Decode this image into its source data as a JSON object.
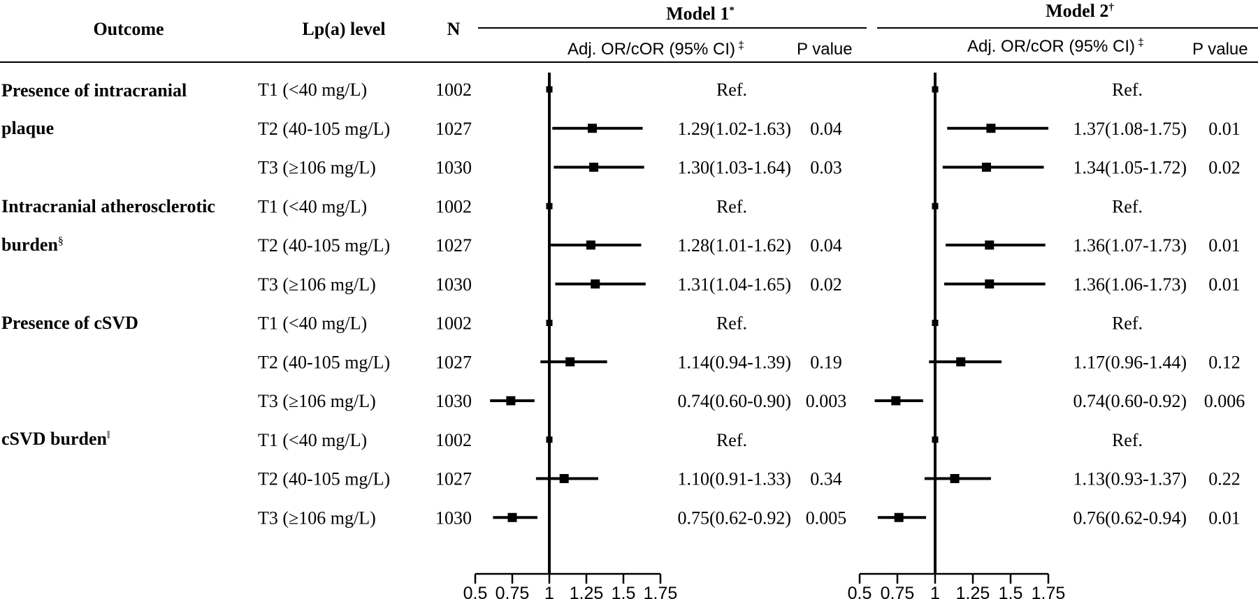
{
  "header": {
    "outcome": "Outcome",
    "level": "Lp(a) level",
    "n": "N",
    "models": [
      {
        "name": "Model 1",
        "mark": "*",
        "est_label": "Adj. OR/cOR (95% CI)",
        "est_mark": "‡",
        "p_label": "P value"
      },
      {
        "name": "Model 2",
        "mark": "†",
        "est_label": "Adj. OR/cOR (95% CI)",
        "est_mark": "‡",
        "p_label": "P value"
      }
    ]
  },
  "outcomes": [
    {
      "lines": [
        "Presence of intracranial",
        "plaque"
      ],
      "mark": ""
    },
    {
      "lines": [
        "Intracranial atherosclerotic",
        "burden"
      ],
      "mark": "§"
    },
    {
      "lines": [
        "Presence of cSVD"
      ],
      "mark": ""
    },
    {
      "lines": [
        "cSVD burden"
      ],
      "mark": "‖"
    }
  ],
  "chart_data": [
    {
      "type": "forest",
      "title": "Model 1",
      "xlim": [
        0.5,
        1.75
      ],
      "reference_line": 1,
      "x_ticks": [
        "0.5",
        "0.75",
        "1",
        "1.25",
        "1.5",
        "1.75"
      ],
      "rows": [
        {
          "level": "T1 (<40 mg/L)",
          "n": "1002",
          "est": 1.0,
          "lo": 1.0,
          "hi": 1.0,
          "text": "Ref.",
          "p": ""
        },
        {
          "level": "T2 (40-105 mg/L)",
          "n": "1027",
          "est": 1.29,
          "lo": 1.02,
          "hi": 1.63,
          "text": "1.29(1.02-1.63)",
          "p": "0.04"
        },
        {
          "level": "T3 (≥106 mg/L)",
          "n": "1030",
          "est": 1.3,
          "lo": 1.03,
          "hi": 1.64,
          "text": "1.30(1.03-1.64)",
          "p": "0.03"
        },
        {
          "level": "T1 (<40 mg/L)",
          "n": "1002",
          "est": 1.0,
          "lo": 1.0,
          "hi": 1.0,
          "text": "Ref.",
          "p": ""
        },
        {
          "level": "T2 (40-105 mg/L)",
          "n": "1027",
          "est": 1.28,
          "lo": 1.01,
          "hi": 1.62,
          "text": "1.28(1.01-1.62)",
          "p": "0.04"
        },
        {
          "level": "T3 (≥106 mg/L)",
          "n": "1030",
          "est": 1.31,
          "lo": 1.04,
          "hi": 1.65,
          "text": "1.31(1.04-1.65)",
          "p": "0.02"
        },
        {
          "level": "T1 (<40 mg/L)",
          "n": "1002",
          "est": 1.0,
          "lo": 1.0,
          "hi": 1.0,
          "text": "Ref.",
          "p": ""
        },
        {
          "level": "T2 (40-105 mg/L)",
          "n": "1027",
          "est": 1.14,
          "lo": 0.94,
          "hi": 1.39,
          "text": "1.14(0.94-1.39)",
          "p": "0.19"
        },
        {
          "level": "T3 (≥106 mg/L)",
          "n": "1030",
          "est": 0.74,
          "lo": 0.6,
          "hi": 0.9,
          "text": "0.74(0.60-0.90)",
          "p": "0.003"
        },
        {
          "level": "T1 (<40 mg/L)",
          "n": "1002",
          "est": 1.0,
          "lo": 1.0,
          "hi": 1.0,
          "text": "Ref.",
          "p": ""
        },
        {
          "level": "T2 (40-105 mg/L)",
          "n": "1027",
          "est": 1.1,
          "lo": 0.91,
          "hi": 1.33,
          "text": "1.10(0.91-1.33)",
          "p": "0.34"
        },
        {
          "level": "T3 (≥106 mg/L)",
          "n": "1030",
          "est": 0.75,
          "lo": 0.62,
          "hi": 0.92,
          "text": "0.75(0.62-0.92)",
          "p": "0.005"
        }
      ]
    },
    {
      "type": "forest",
      "title": "Model 2",
      "xlim": [
        0.5,
        1.75
      ],
      "reference_line": 1,
      "x_ticks": [
        "0.5",
        "0.75",
        "1",
        "1.25",
        "1.5",
        "1.75"
      ],
      "rows": [
        {
          "est": 1.0,
          "lo": 1.0,
          "hi": 1.0,
          "text": "Ref.",
          "p": ""
        },
        {
          "est": 1.37,
          "lo": 1.08,
          "hi": 1.75,
          "text": "1.37(1.08-1.75)",
          "p": "0.01"
        },
        {
          "est": 1.34,
          "lo": 1.05,
          "hi": 1.72,
          "text": "1.34(1.05-1.72)",
          "p": "0.02"
        },
        {
          "est": 1.0,
          "lo": 1.0,
          "hi": 1.0,
          "text": "Ref.",
          "p": ""
        },
        {
          "est": 1.36,
          "lo": 1.07,
          "hi": 1.73,
          "text": "1.36(1.07-1.73)",
          "p": "0.01"
        },
        {
          "est": 1.36,
          "lo": 1.06,
          "hi": 1.73,
          "text": "1.36(1.06-1.73)",
          "p": "0.01"
        },
        {
          "est": 1.0,
          "lo": 1.0,
          "hi": 1.0,
          "text": "Ref.",
          "p": ""
        },
        {
          "est": 1.17,
          "lo": 0.96,
          "hi": 1.44,
          "text": "1.17(0.96-1.44)",
          "p": "0.12"
        },
        {
          "est": 0.74,
          "lo": 0.6,
          "hi": 0.92,
          "text": "0.74(0.60-0.92)",
          "p": "0.006"
        },
        {
          "est": 1.0,
          "lo": 1.0,
          "hi": 1.0,
          "text": "Ref.",
          "p": ""
        },
        {
          "est": 1.13,
          "lo": 0.93,
          "hi": 1.37,
          "text": "1.13(0.93-1.37)",
          "p": "0.22"
        },
        {
          "est": 0.76,
          "lo": 0.62,
          "hi": 0.94,
          "text": "0.76(0.62-0.94)",
          "p": "0.01"
        }
      ]
    }
  ]
}
